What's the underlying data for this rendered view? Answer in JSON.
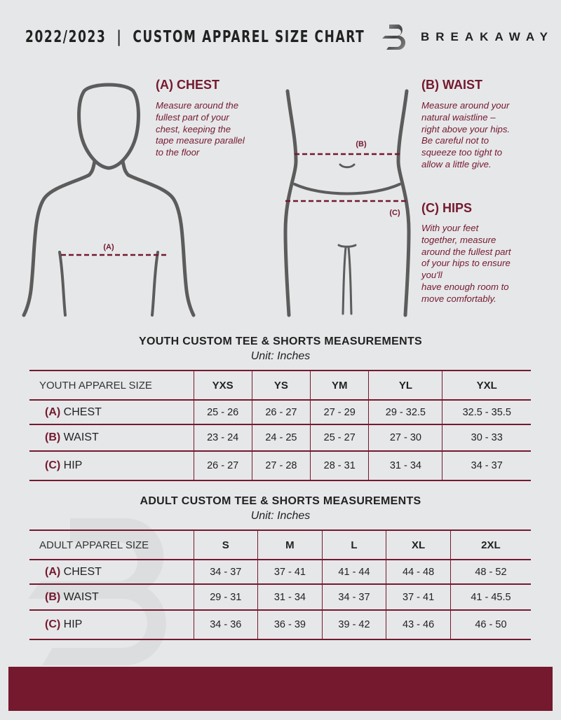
{
  "header": {
    "title": "2022/2023  |  CUSTOM APPAREL SIZE CHART",
    "brand": "BREAKAWAY"
  },
  "colors": {
    "accent": "#74192e",
    "background": "#e6e7e9"
  },
  "figure": {
    "chest_marker": "(A)",
    "waist_marker": "(B)",
    "hips_marker": "(C)"
  },
  "sections": {
    "chest": {
      "title": "(A) CHEST",
      "body": "Measure around the\nfullest part of your\nchest, keeping the\ntape measure parallel\nto the floor"
    },
    "waist": {
      "title": "(B) WAIST",
      "body": "Measure around your\nnatural waistline –\nright above your hips.\nBe careful not to\nsqueeze too tight to\nallow a little give."
    },
    "hips": {
      "title": "(C) HIPS",
      "body": "With your feet\ntogether, measure\naround the fullest part\nof your hips to ensure\nyou'll\nhave enough room to\nmove comfortably."
    }
  },
  "youth": {
    "title": "YOUTH CUSTOM TEE & SHORTS MEASUREMENTS",
    "unit": "Unit: Inches",
    "header": "YOUTH APPAREL SIZE",
    "sizes": [
      "YXS",
      "YS",
      "YM",
      "YL",
      "YXL"
    ],
    "rows": [
      {
        "letter": "(A)",
        "label": "CHEST",
        "values": [
          "25 - 26",
          "26 - 27",
          "27 - 29",
          "29 - 32.5",
          "32.5 - 35.5"
        ]
      },
      {
        "letter": "(B)",
        "label": "WAIST",
        "values": [
          "23 - 24",
          "24 - 25",
          "25 - 27",
          "27 - 30",
          "30 - 33"
        ]
      },
      {
        "letter": "(C)",
        "label": "HIP",
        "values": [
          "26 - 27",
          "27 - 28",
          "28 - 31",
          "31 - 34",
          "34 - 37"
        ]
      }
    ]
  },
  "adult": {
    "title": "ADULT CUSTOM TEE & SHORTS MEASUREMENTS",
    "unit": "Unit: Inches",
    "header": "ADULT APPAREL SIZE",
    "sizes": [
      "S",
      "M",
      "L",
      "XL",
      "2XL"
    ],
    "rows": [
      {
        "letter": "(A)",
        "label": "CHEST",
        "values": [
          "34 - 37",
          "37 - 41",
          "41 - 44",
          "44 - 48",
          "48 - 52"
        ]
      },
      {
        "letter": "(B)",
        "label": "WAIST",
        "values": [
          "29 - 31",
          "31 - 34",
          "34 - 37",
          "37 - 41",
          "41 - 45.5"
        ]
      },
      {
        "letter": "(C)",
        "label": "HIP",
        "values": [
          "34 - 36",
          "36 - 39",
          "39 - 42",
          "43 - 46",
          "46 - 50"
        ]
      }
    ]
  }
}
